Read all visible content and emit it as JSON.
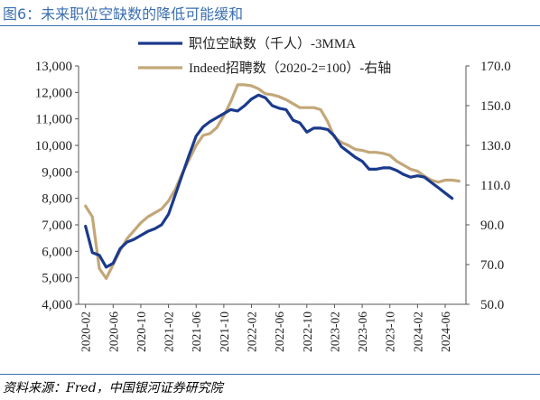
{
  "figure": {
    "title": "图6：未来职位空缺数的降低可能缓和",
    "source": "资料来源：Fred，中国银河证券研究院"
  },
  "colors": {
    "series1": "#1b3a8c",
    "series2": "#c3a779",
    "title": "#3a6fb0"
  },
  "chart_data": {
    "type": "line",
    "legend_position": "top-center",
    "grid": false,
    "x_tick_labels": [
      "2020-02",
      "2020-06",
      "2020-10",
      "2021-02",
      "2021-06",
      "2021-10",
      "2022-02",
      "2022-06",
      "2022-10",
      "2023-02",
      "2023-06",
      "2023-10",
      "2024-02",
      "2024-06"
    ],
    "x_start": "2020-01",
    "y_left": {
      "lim": [
        4000,
        13000
      ],
      "ticks": [
        "4,000",
        "5,000",
        "6,000",
        "7,000",
        "8,000",
        "9,000",
        "10,000",
        "11,000",
        "12,000",
        "13,000"
      ]
    },
    "y_right": {
      "lim": [
        50,
        170
      ],
      "ticks": [
        "50.0",
        "70.0",
        "90.0",
        "110.0",
        "130.0",
        "150.0",
        "170.0"
      ]
    },
    "series": [
      {
        "name": "职位空缺数（千人）-3MMA",
        "axis": "left",
        "x": [
          "2020-02",
          "2020-03",
          "2020-04",
          "2020-05",
          "2020-06",
          "2020-07",
          "2020-08",
          "2020-09",
          "2020-10",
          "2020-11",
          "2020-12",
          "2021-01",
          "2021-02",
          "2021-03",
          "2021-04",
          "2021-05",
          "2021-06",
          "2021-07",
          "2021-08",
          "2021-09",
          "2021-10",
          "2021-11",
          "2021-12",
          "2022-01",
          "2022-02",
          "2022-03",
          "2022-04",
          "2022-05",
          "2022-06",
          "2022-07",
          "2022-08",
          "2022-09",
          "2022-10",
          "2022-11",
          "2022-12",
          "2023-01",
          "2023-02",
          "2023-03",
          "2023-04",
          "2023-05",
          "2023-06",
          "2023-07",
          "2023-08",
          "2023-09",
          "2023-10",
          "2023-11",
          "2023-12",
          "2024-01",
          "2024-02",
          "2024-03",
          "2024-04",
          "2024-05",
          "2024-06",
          "2024-07"
        ],
        "values": [
          6950,
          5950,
          5850,
          5400,
          5550,
          6100,
          6350,
          6450,
          6600,
          6750,
          6850,
          7000,
          7400,
          8150,
          8900,
          9650,
          10350,
          10700,
          10900,
          11050,
          11200,
          11350,
          11300,
          11500,
          11750,
          11900,
          11800,
          11500,
          11400,
          11350,
          10950,
          10850,
          10500,
          10650,
          10650,
          10600,
          10350,
          9950,
          9750,
          9550,
          9400,
          9100,
          9100,
          9150,
          9150,
          9050,
          8900,
          8800,
          8850,
          8800,
          8600,
          8400,
          8200,
          8000
        ]
      },
      {
        "name": "Indeed招聘数（2020-2=100）-右轴",
        "axis": "right",
        "x": [
          "2020-02",
          "2020-03",
          "2020-04",
          "2020-05",
          "2020-06",
          "2020-07",
          "2020-08",
          "2020-09",
          "2020-10",
          "2020-11",
          "2020-12",
          "2021-01",
          "2021-02",
          "2021-03",
          "2021-04",
          "2021-05",
          "2021-06",
          "2021-07",
          "2021-08",
          "2021-09",
          "2021-10",
          "2021-11",
          "2021-12",
          "2022-01",
          "2022-02",
          "2022-03",
          "2022-04",
          "2022-05",
          "2022-06",
          "2022-07",
          "2022-08",
          "2022-09",
          "2022-10",
          "2022-11",
          "2022-12",
          "2023-01",
          "2023-02",
          "2023-03",
          "2023-04",
          "2023-05",
          "2023-06",
          "2023-07",
          "2023-08",
          "2023-09",
          "2023-10",
          "2023-11",
          "2023-12",
          "2024-01",
          "2024-02",
          "2024-03",
          "2024-04",
          "2024-05",
          "2024-06",
          "2024-07",
          "2024-08"
        ],
        "values": [
          99.5,
          94,
          68,
          63,
          70,
          77,
          83,
          87,
          91,
          94,
          96,
          98,
          102,
          108,
          116,
          123,
          130,
          135,
          136,
          139,
          145,
          152,
          160.5,
          160.5,
          160,
          158.5,
          156,
          155.5,
          154.5,
          153,
          151,
          149,
          149,
          149,
          148,
          142,
          134,
          131.5,
          130,
          128,
          127.5,
          126.5,
          126.5,
          126,
          125,
          122,
          120,
          118,
          117,
          114.5,
          112.5,
          111.5,
          112.5,
          112.5,
          112
        ]
      }
    ]
  }
}
